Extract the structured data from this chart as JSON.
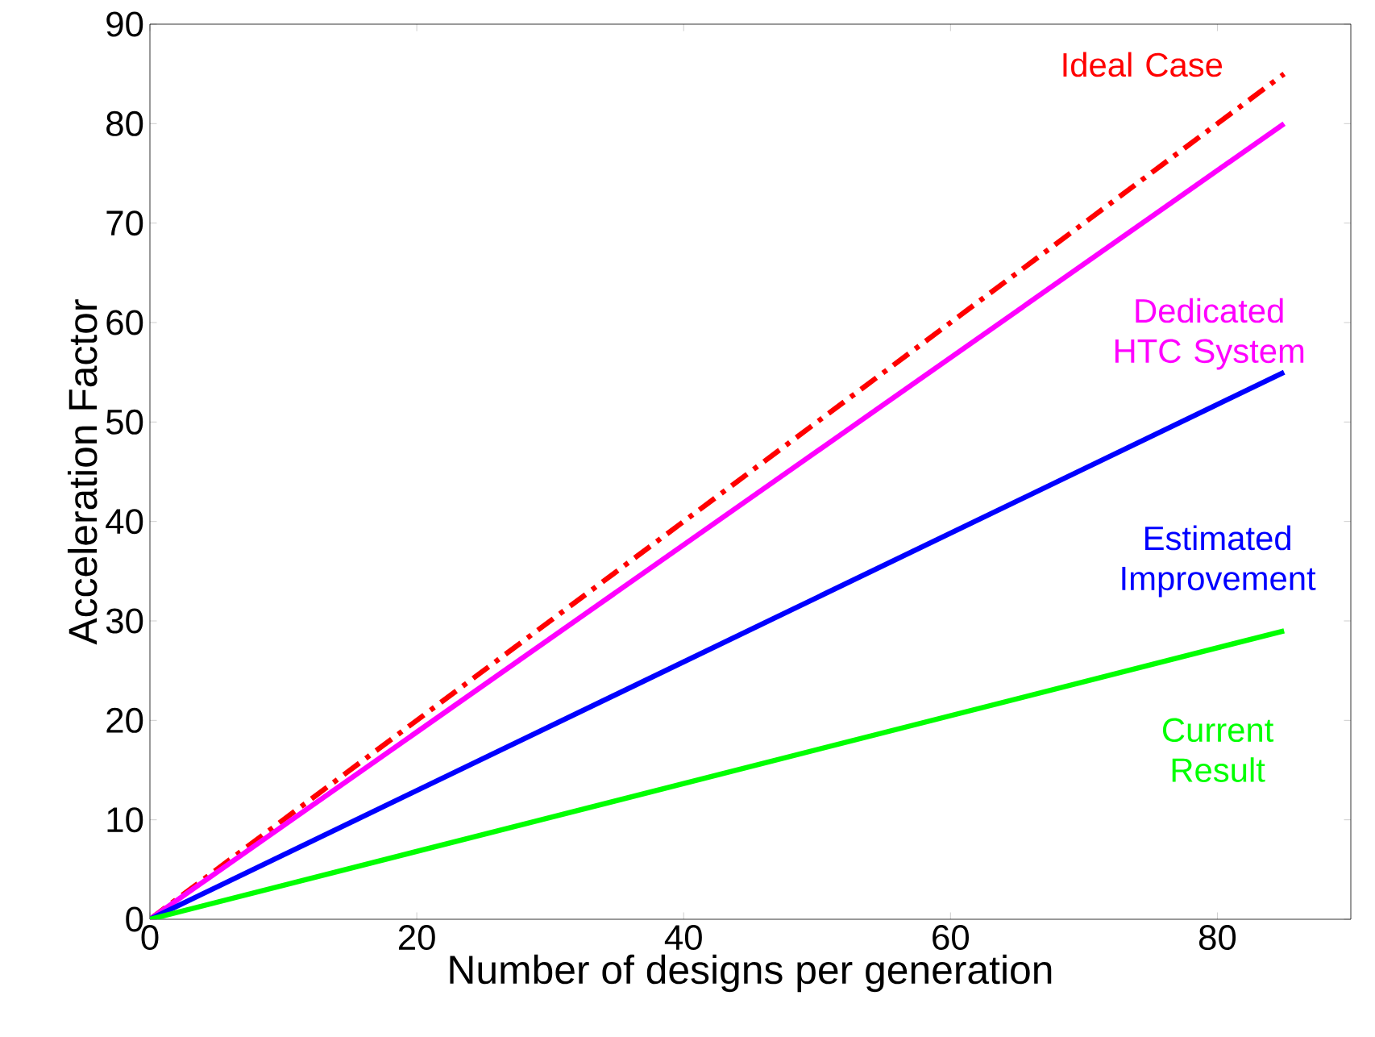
{
  "chart_data": {
    "type": "line",
    "xlabel": "Number of designs per generation",
    "ylabel": "Acceleration Factor",
    "xlim": [
      0,
      90
    ],
    "xticks": [
      0,
      20,
      40,
      60,
      80
    ],
    "ylim": [
      0,
      90
    ],
    "yticks": [
      0,
      10,
      20,
      30,
      40,
      50,
      60,
      70,
      80,
      90
    ],
    "grid": false,
    "legend": false,
    "marker": "none",
    "x": [
      0,
      85
    ],
    "series": [
      {
        "name": "Ideal Case",
        "color": "#ff0000",
        "values": [
          0,
          85
        ],
        "line_style": "dashdot"
      },
      {
        "name": "Dedicated HTC System",
        "color": "#ff00ff",
        "values": [
          0,
          80
        ],
        "line_style": "solid"
      },
      {
        "name": "Estimated Improvement",
        "color": "#0000ff",
        "values": [
          0,
          55
        ],
        "line_style": "solid"
      },
      {
        "name": "Current Result",
        "color": "#00ff00",
        "values": [
          0,
          29
        ],
        "line_style": "solid"
      }
    ]
  }
}
